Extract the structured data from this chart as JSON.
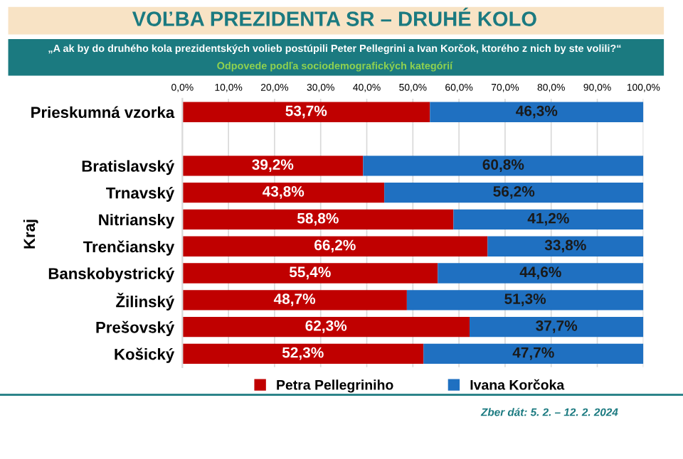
{
  "chart_data": {
    "type": "bar",
    "orientation": "horizontal",
    "stacked": true,
    "title": "VOĽBA PREZIDENTA SR – DRUHÉ KOLO",
    "subtitle": "„A ak by do druhého kola prezidentských volieb postúpili Peter Pellegrini a Ivan Korčok, ktorého z nich by ste volili?“",
    "ylabel": "Kraj",
    "categories": [
      "Prieskumná vzorka",
      null,
      "Bratislavský",
      "Trnavský",
      "Nitriansky",
      "Trenčiansky",
      "Banskobystrický",
      "Žilinský",
      "Prešovský",
      "Košický"
    ],
    "series": [
      {
        "name": "Petra Pellegriniho",
        "color": "#c00000",
        "values": [
          53.7,
          null,
          39.2,
          43.8,
          58.8,
          66.2,
          55.4,
          48.7,
          62.3,
          52.3
        ]
      },
      {
        "name": "Ivana Korčoka",
        "color": "#1f70c1",
        "values": [
          46.3,
          null,
          60.8,
          56.2,
          41.2,
          33.8,
          44.6,
          51.3,
          37.7,
          47.7
        ]
      }
    ],
    "value_labels": [
      [
        "53,7%",
        null,
        "39,2%",
        "43,8%",
        "58,8%",
        "66,2%",
        "55,4%",
        "48,7%",
        "62,3%",
        "52,3%"
      ],
      [
        "46,3%",
        null,
        "60,8%",
        "56,2%",
        "41,2%",
        "33,8%",
        "44,6%",
        "51,3%",
        "37,7%",
        "47,7%"
      ]
    ],
    "xlim": [
      0,
      100
    ],
    "xticks": [
      {
        "value": 0,
        "label": "0,0%"
      },
      {
        "value": 10,
        "label": "10,0%"
      },
      {
        "value": 20,
        "label": "20,0%"
      },
      {
        "value": 30,
        "label": "30,0%"
      },
      {
        "value": 40,
        "label": "40,0%"
      },
      {
        "value": 50,
        "label": "50,0%"
      },
      {
        "value": 60,
        "label": "60,0%"
      },
      {
        "value": 70,
        "label": "70,0%"
      },
      {
        "value": 80,
        "label": "80,0%"
      },
      {
        "value": 90,
        "label": "90,0%"
      },
      {
        "value": 100,
        "label": "100,0%"
      }
    ],
    "grid": "x",
    "legend": "bottom",
    "annotations": [
      "Odpovede podľa sociodemografických kategórií",
      "Zber dát: 5. 2. – 12. 2. 2024"
    ]
  }
}
